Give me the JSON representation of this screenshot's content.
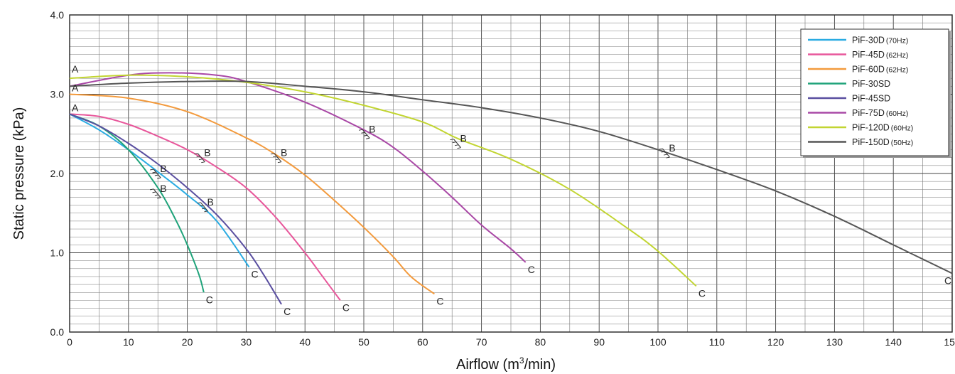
{
  "chart_data": {
    "type": "line",
    "xlabel": "Airflow (m",
    "xlabel_sup": "3",
    "xlabel_tail": "/min)",
    "ylabel": "Static pressure (kPa)",
    "xlim": [
      0,
      150
    ],
    "ylim": [
      0.0,
      4.0
    ],
    "x_ticks": [
      "0",
      "10",
      "20",
      "30",
      "40",
      "50",
      "60",
      "70",
      "80",
      "90",
      "100",
      "110",
      "120",
      "130",
      "140",
      "150"
    ],
    "y_ticks": [
      "0.0",
      "1.0",
      "2.0",
      "3.0",
      "4.0"
    ],
    "grid": true,
    "legend_position": "top-right",
    "point_labels": {
      "start": "A",
      "mid": "B",
      "end": "C"
    },
    "series": [
      {
        "name": "PiF-30D",
        "note": "(70Hz)",
        "color": "#29abe2",
        "points": [
          [
            0,
            2.75
          ],
          [
            5,
            2.55
          ],
          [
            10,
            2.3
          ],
          [
            15,
            2.02
          ],
          [
            20,
            1.73
          ],
          [
            25,
            1.4
          ],
          [
            30.5,
            0.82
          ]
        ],
        "A": [
          0,
          2.75
        ],
        "B": [
          15,
          2.0
        ],
        "C": [
          30.5,
          0.82
        ]
      },
      {
        "name": "PiF-45D",
        "note": "(62Hz)",
        "color": "#e8579b",
        "points": [
          [
            0,
            2.75
          ],
          [
            5,
            2.72
          ],
          [
            10,
            2.62
          ],
          [
            15,
            2.47
          ],
          [
            20,
            2.3
          ],
          [
            25,
            2.08
          ],
          [
            30,
            1.82
          ],
          [
            35,
            1.45
          ],
          [
            40,
            1.0
          ],
          [
            43,
            0.7
          ],
          [
            46,
            0.4
          ]
        ],
        "A": [
          0,
          2.75
        ],
        "B": [
          22.5,
          2.2
        ],
        "C": [
          46,
          0.4
        ]
      },
      {
        "name": "PiF-60D",
        "note": "(62Hz)",
        "color": "#f39a3c",
        "points": [
          [
            0,
            3.0
          ],
          [
            10,
            2.95
          ],
          [
            20,
            2.78
          ],
          [
            30,
            2.45
          ],
          [
            35,
            2.24
          ],
          [
            40,
            1.98
          ],
          [
            45,
            1.66
          ],
          [
            50,
            1.32
          ],
          [
            55,
            0.95
          ],
          [
            58,
            0.7
          ],
          [
            62,
            0.48
          ]
        ],
        "A": [
          0,
          3.0
        ],
        "B": [
          35.5,
          2.2
        ],
        "C": [
          62,
          0.48
        ]
      },
      {
        "name": "PiF-30SD",
        "note": "",
        "color": "#1fa37a",
        "points": [
          [
            0,
            2.75
          ],
          [
            5,
            2.6
          ],
          [
            10,
            2.3
          ],
          [
            15,
            1.82
          ],
          [
            18,
            1.42
          ],
          [
            20,
            1.1
          ],
          [
            22,
            0.72
          ],
          [
            22.8,
            0.5
          ]
        ],
        "A": [
          0,
          2.75
        ],
        "B": [
          15,
          1.75
        ],
        "C": [
          22.8,
          0.5
        ]
      },
      {
        "name": "PiF-45SD",
        "note": "",
        "color": "#5a4fa0",
        "points": [
          [
            0,
            2.75
          ],
          [
            5,
            2.6
          ],
          [
            10,
            2.38
          ],
          [
            15,
            2.12
          ],
          [
            20,
            1.82
          ],
          [
            25,
            1.48
          ],
          [
            30,
            1.05
          ],
          [
            33,
            0.72
          ],
          [
            36,
            0.35
          ]
        ],
        "A": [
          0,
          2.75
        ],
        "B": [
          23,
          1.58
        ],
        "C": [
          36,
          0.35
        ]
      },
      {
        "name": "PiF-75D",
        "note": "(60Hz)",
        "color": "#a948a6",
        "points": [
          [
            0,
            3.1
          ],
          [
            10,
            3.24
          ],
          [
            17,
            3.27
          ],
          [
            25,
            3.24
          ],
          [
            30,
            3.16
          ],
          [
            40,
            2.9
          ],
          [
            50,
            2.55
          ],
          [
            55,
            2.33
          ],
          [
            60,
            2.03
          ],
          [
            65,
            1.7
          ],
          [
            70,
            1.35
          ],
          [
            75,
            1.05
          ],
          [
            77.5,
            0.88
          ]
        ],
        "A": [
          0,
          3.1
        ],
        "B": [
          50.5,
          2.5
        ],
        "C": [
          77.5,
          0.88
        ]
      },
      {
        "name": "PiF-120D",
        "note": "(60Hz)",
        "color": "#c2d532",
        "points": [
          [
            0,
            3.2
          ],
          [
            10,
            3.24
          ],
          [
            20,
            3.22
          ],
          [
            30,
            3.15
          ],
          [
            40,
            3.03
          ],
          [
            50,
            2.86
          ],
          [
            60,
            2.65
          ],
          [
            66,
            2.44
          ],
          [
            75,
            2.18
          ],
          [
            85,
            1.8
          ],
          [
            95,
            1.3
          ],
          [
            100,
            1.02
          ],
          [
            106.5,
            0.58
          ]
        ],
        "A": [
          0,
          3.2
        ],
        "B": [
          66,
          2.38
        ],
        "C": [
          106.5,
          0.58
        ]
      },
      {
        "name": "PiF-150D",
        "note": "(50Hz)",
        "color": "#565656",
        "points": [
          [
            0,
            3.1
          ],
          [
            10,
            3.14
          ],
          [
            20,
            3.16
          ],
          [
            30,
            3.16
          ],
          [
            40,
            3.1
          ],
          [
            50,
            3.03
          ],
          [
            60,
            2.93
          ],
          [
            70,
            2.83
          ],
          [
            80,
            2.7
          ],
          [
            90,
            2.53
          ],
          [
            100,
            2.3
          ],
          [
            110,
            2.05
          ],
          [
            120,
            1.78
          ],
          [
            130,
            1.46
          ],
          [
            140,
            1.1
          ],
          [
            150,
            0.74
          ]
        ],
        "A": [
          0,
          3.1
        ],
        "B": [
          101.5,
          2.26
        ],
        "C": [
          150,
          0.74
        ]
      }
    ]
  }
}
